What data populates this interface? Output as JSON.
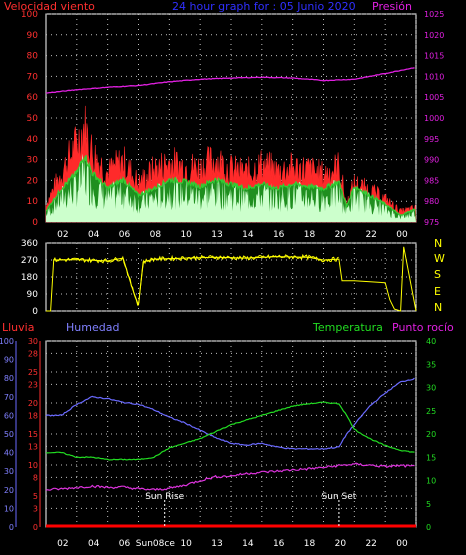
{
  "header": {
    "wind_title": "Velocidad viento",
    "chart_title": "24 hour graph for : 05 Junio 2020",
    "pressure_title": "Presión"
  },
  "lower_header": {
    "rain_title": "Lluvia",
    "humidity_title": "Humedad",
    "temp_title": "Temperatura",
    "dew_title": "Punto rocío"
  },
  "annotations": {
    "sunrise": "Sun Rise",
    "sunset": "Sun Set"
  },
  "colors": {
    "wind": "#ff2a2a",
    "wind_avg": "#33cc33",
    "gust_light": "#ccffcc",
    "pressure": "#e020e0",
    "direction": "#ffff00",
    "humidity": "#6a6aff",
    "temperature": "#22dd22",
    "dew": "#dd33dd",
    "rain": "#ff0000",
    "grid": "#bfbfbf",
    "axis_text_wind": "#ff3030",
    "axis_text_pressure": "#e020e0",
    "axis_text_humidity": "#8080ff",
    "axis_text_rain": "#ff3030",
    "axis_text_temp": "#22dd22",
    "time_text": "#ffffff"
  },
  "chart_data": [
    {
      "type": "line",
      "name": "wind",
      "x_ticks": [
        "02",
        "04",
        "06",
        "08",
        "10",
        "13",
        "14",
        "16",
        "18",
        "20",
        "22",
        "00"
      ],
      "y_ticks_left": [
        "100",
        "90",
        "80",
        "70",
        "60",
        "50",
        "40",
        "30",
        "20",
        "10",
        "0"
      ],
      "ylim": [
        0,
        100
      ],
      "y2_ticks_right": [
        "1025",
        "1020",
        "1015",
        "1010",
        "1005",
        "1000",
        "995",
        "990",
        "985",
        "980",
        "975"
      ],
      "y2lim": [
        975,
        1025
      ],
      "grid": true,
      "series": [
        {
          "name": "Presión",
          "x": [
            0,
            2,
            4,
            6,
            8,
            10,
            12,
            14,
            16,
            18,
            20,
            22,
            24
          ],
          "y": [
            1006.0,
            1006.8,
            1007.4,
            1007.8,
            1008.7,
            1009.3,
            1009.6,
            1009.8,
            1009.6,
            1009.0,
            1009.3,
            1010.7,
            1012.2
          ]
        },
        {
          "name": "gust",
          "x": [
            0,
            1,
            2,
            2.5,
            3,
            4,
            5,
            6,
            7,
            8,
            9,
            10,
            11,
            12,
            13,
            14,
            15,
            16,
            17,
            18,
            19,
            19.5,
            20,
            21,
            22,
            23,
            24
          ],
          "y": [
            10,
            28,
            45,
            55,
            40,
            28,
            35,
            22,
            30,
            34,
            32,
            31,
            36,
            30,
            28,
            33,
            29,
            31,
            30,
            27,
            32,
            10,
            22,
            18,
            13,
            6,
            8
          ]
        },
        {
          "name": "average",
          "x": [
            0,
            1,
            2,
            2.5,
            3,
            4,
            5,
            6,
            7,
            8,
            9,
            10,
            11,
            12,
            13,
            14,
            15,
            16,
            17,
            18,
            19,
            19.5,
            20,
            21,
            22,
            23,
            24
          ],
          "y": [
            5,
            15,
            22,
            30,
            22,
            15,
            19,
            12,
            15,
            19,
            18,
            16,
            19,
            17,
            15,
            17,
            15,
            17,
            16,
            15,
            18,
            7,
            16,
            12,
            8,
            3,
            6
          ]
        }
      ]
    },
    {
      "type": "line",
      "name": "wind_direction",
      "y_ticks_left": [
        "360",
        "270",
        "180",
        "90",
        "0"
      ],
      "ylim": [
        0,
        360
      ],
      "right_labels": [
        "N",
        "W",
        "S",
        "E",
        "N"
      ],
      "grid": true,
      "series": [
        {
          "name": "direction",
          "x": [
            0,
            0.3,
            0.5,
            2,
            4,
            5,
            5.6,
            6,
            6.3,
            7,
            9,
            11,
            13,
            15,
            17,
            18,
            19,
            19.2,
            20,
            22,
            22.3,
            22.6,
            23,
            23.2,
            24
          ],
          "y": [
            0,
            0,
            270,
            272,
            265,
            280,
            120,
            30,
            260,
            275,
            280,
            285,
            280,
            288,
            285,
            270,
            275,
            160,
            160,
            150,
            60,
            10,
            0,
            340,
            0
          ]
        }
      ]
    },
    {
      "type": "line",
      "name": "humidity_temp",
      "x_ticks": [
        "02",
        "04",
        "06",
        "Sun08ce",
        "10",
        "13",
        "14",
        "16",
        "18",
        "20",
        "22",
        "00"
      ],
      "y_ticks_humidity": [
        "100",
        "90",
        "80",
        "70",
        "60",
        "50",
        "40",
        "30",
        "20",
        "10",
        "0"
      ],
      "y_ticks_rain": [
        "30",
        "28",
        "25",
        "23",
        "20",
        "18",
        "15",
        "13",
        "10",
        "8",
        "5",
        "3",
        "0"
      ],
      "y_ticks_temp": [
        "40",
        "35",
        "30",
        "25",
        "20",
        "15",
        "10",
        "5",
        "0"
      ],
      "humidity_lim": [
        0,
        100
      ],
      "rain_lim": [
        0,
        30
      ],
      "temp_lim": [
        0,
        40
      ],
      "grid": true,
      "series": [
        {
          "name": "Humedad",
          "x": [
            0,
            1,
            2,
            3,
            4,
            5,
            6,
            7,
            8,
            9,
            10,
            11,
            12,
            13,
            14,
            15,
            16,
            17,
            18,
            19,
            19.5,
            20,
            21,
            22,
            23,
            24
          ],
          "y": [
            60,
            60,
            66,
            70,
            69,
            67,
            66,
            63,
            59,
            56,
            52,
            48,
            45,
            44,
            45,
            43,
            42,
            42,
            42,
            43,
            50,
            55,
            65,
            72,
            78,
            80
          ]
        },
        {
          "name": "Temperatura",
          "x": [
            0,
            1,
            2,
            3,
            4,
            5,
            6,
            7,
            8,
            9,
            10,
            11,
            12,
            13,
            14,
            15,
            16,
            17,
            18,
            19,
            19.5,
            20,
            21,
            22,
            23,
            24
          ],
          "y": [
            16,
            16,
            15,
            15,
            14.5,
            14.5,
            14.5,
            15,
            17,
            18,
            19,
            20.5,
            22,
            23,
            24,
            25,
            26,
            26.5,
            26.8,
            26.5,
            24,
            21,
            19,
            17.5,
            16.5,
            16
          ]
        },
        {
          "name": "Punto rocío",
          "x": [
            0,
            1,
            2,
            3,
            4,
            5,
            6,
            7,
            8,
            9,
            10,
            11,
            12,
            13,
            14,
            15,
            16,
            17,
            18,
            19,
            20,
            21,
            22,
            23,
            24
          ],
          "y": [
            8,
            8.2,
            8.5,
            8.8,
            8.5,
            8.6,
            8.2,
            8.0,
            8.3,
            9,
            10,
            10.8,
            11,
            11.5,
            11.8,
            12,
            12.3,
            12.5,
            12.8,
            13.2,
            13.5,
            13.3,
            13.0,
            13.2,
            13.0
          ]
        },
        {
          "name": "Lluvia",
          "x": [
            0,
            24
          ],
          "y": [
            0,
            0
          ]
        }
      ],
      "markers": [
        {
          "label": "Sun Rise",
          "x": 7.7
        },
        {
          "label": "Sun Set",
          "x": 19.0
        }
      ]
    }
  ]
}
